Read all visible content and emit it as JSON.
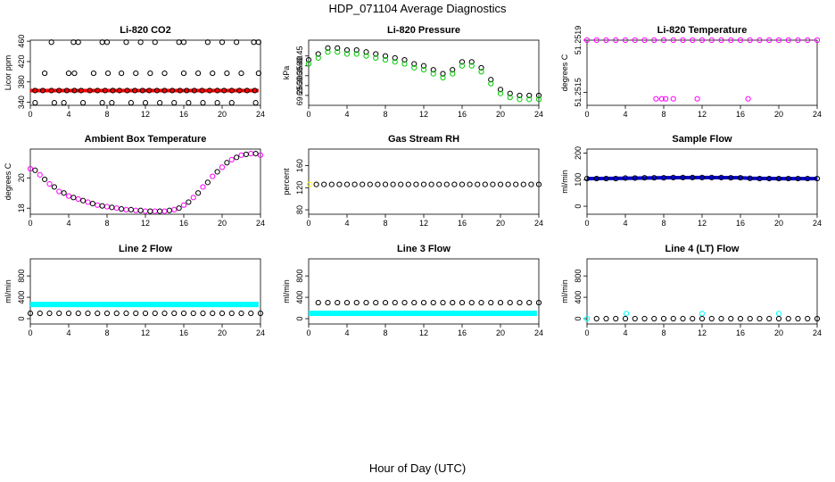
{
  "title": "HDP_071104  Average Diagnostics",
  "xlabel": "Hour of Day (UTC)",
  "chart_data": [
    {
      "id": "co2",
      "type": "scatter",
      "title": "Li-820 CO2",
      "ylabel": "Licor ppm",
      "xlim": [
        0,
        24
      ],
      "ylim": [
        334,
        462
      ],
      "xticks": [
        "0",
        "4",
        "8",
        "12",
        "16",
        "20",
        "24"
      ],
      "yticks": [
        "340",
        "380",
        "420",
        "460"
      ],
      "colors": {
        "line": "#ff0000",
        "point": "#000000"
      },
      "series": [
        {
          "style": "line",
          "color": "#ff0000",
          "x": [
            0,
            23.8
          ],
          "y": [
            363,
            363
          ]
        },
        {
          "style": "points",
          "color": "#000000",
          "x": [
            0.5,
            1.3,
            2.2,
            3.0,
            3.8,
            4.6,
            5.3,
            6.2,
            7.0,
            7.8,
            8.6,
            9.3,
            10.1,
            10.9,
            11.7,
            12.4,
            13.2,
            14.0,
            14.8,
            15.6,
            16.3,
            17.1,
            17.9,
            18.7,
            19.5,
            20.2,
            21.0,
            21.8,
            22.6,
            23.4,
            2.2,
            4.5,
            5.0,
            7.5,
            8.0,
            10.0,
            11.5,
            13.0,
            15.5,
            16.0,
            18.5,
            20.0,
            21.5,
            23.3,
            23.8,
            1.5,
            4.0,
            4.6,
            6.6,
            8.1,
            9.5,
            11.0,
            12.5,
            14.0,
            16.0,
            17.5,
            19.0,
            20.5,
            22.0,
            23.8,
            0.5,
            2.5,
            3.5,
            5.5,
            7.5,
            8.5,
            10.5,
            12.0,
            13.5,
            15.0,
            16.5,
            18.0,
            19.5,
            21.0,
            23.5
          ],
          "y": [
            363,
            363,
            363,
            363,
            363,
            363,
            363,
            363,
            363,
            363,
            363,
            363,
            363,
            363,
            363,
            363,
            363,
            363,
            363,
            363,
            363,
            363,
            363,
            363,
            363,
            363,
            363,
            363,
            363,
            363,
            458,
            458,
            458,
            458,
            458,
            458,
            458,
            458,
            458,
            458,
            458,
            458,
            458,
            458,
            458,
            397,
            397,
            397,
            397,
            397,
            397,
            397,
            397,
            397,
            397,
            397,
            397,
            397,
            397,
            397,
            339,
            339,
            339,
            339,
            339,
            339,
            339,
            339,
            339,
            339,
            339,
            339,
            339,
            339,
            339
          ]
        }
      ]
    },
    {
      "id": "pressure",
      "type": "scatter",
      "title": "Li-820 Pressure",
      "ylabel": "kPa",
      "xlim": [
        0,
        24
      ],
      "ylim": [
        69.2,
        69.53
      ],
      "xticks": [
        "0",
        "4",
        "8",
        "12",
        "16",
        "20",
        "24"
      ],
      "yticks": [
        "69.25",
        "69.30",
        "69.35",
        "69.40",
        "69.45"
      ],
      "colors": {
        "a": "#000000",
        "b": "#00cc00"
      },
      "series": [
        {
          "style": "points",
          "color": "#000000",
          "x": [
            0,
            1,
            2,
            3,
            4,
            5,
            6,
            7,
            8,
            9,
            10,
            11,
            12,
            13,
            14,
            15,
            16,
            17,
            18,
            19,
            20,
            21,
            22,
            23,
            24
          ],
          "y": [
            69.43,
            69.46,
            69.49,
            69.49,
            69.48,
            69.48,
            69.47,
            69.46,
            69.45,
            69.44,
            69.43,
            69.41,
            69.4,
            69.38,
            69.36,
            69.38,
            69.42,
            69.42,
            69.39,
            69.33,
            69.28,
            69.26,
            69.25,
            69.25,
            69.25
          ]
        },
        {
          "style": "points",
          "color": "#00cc00",
          "x": [
            0,
            1,
            2,
            3,
            4,
            5,
            6,
            7,
            8,
            9,
            10,
            11,
            12,
            13,
            14,
            15,
            16,
            17,
            18,
            19,
            20,
            21,
            22,
            23,
            24
          ],
          "y": [
            69.41,
            69.44,
            69.47,
            69.47,
            69.46,
            69.46,
            69.45,
            69.44,
            69.43,
            69.42,
            69.41,
            69.39,
            69.38,
            69.36,
            69.34,
            69.36,
            69.4,
            69.4,
            69.37,
            69.31,
            69.26,
            69.24,
            69.23,
            69.23,
            69.23
          ]
        }
      ]
    },
    {
      "id": "temp",
      "type": "scatter",
      "title": "Li-820 Temperature",
      "ylabel": "degrees C",
      "xlim": [
        0,
        24
      ],
      "ylim": [
        51.2514,
        51.2519
      ],
      "xticks": [
        "0",
        "4",
        "8",
        "12",
        "16",
        "20",
        "24"
      ],
      "yticks": [
        "51.2515",
        "51.2519"
      ],
      "colors": {
        "a": "#ff00ff",
        "b": "#000000"
      },
      "series": [
        {
          "style": "points",
          "color": "#ff00ff",
          "x": [
            0,
            1,
            2,
            3,
            4,
            5,
            6,
            7,
            8,
            9,
            10,
            11,
            12,
            13,
            14,
            15,
            16,
            17,
            18,
            19,
            20,
            21,
            22,
            23,
            24,
            7.2,
            7.8,
            8.2,
            9.0,
            11.5,
            16.8
          ],
          "y": [
            51.2519,
            51.2519,
            51.2519,
            51.2519,
            51.2519,
            51.2519,
            51.2519,
            51.2519,
            51.2519,
            51.2519,
            51.2519,
            51.2519,
            51.2519,
            51.2519,
            51.2519,
            51.2519,
            51.2519,
            51.2519,
            51.2519,
            51.2519,
            51.2519,
            51.2519,
            51.2519,
            51.2519,
            51.2519,
            51.25145,
            51.25145,
            51.25145,
            51.25145,
            51.25145,
            51.25145
          ]
        }
      ]
    },
    {
      "id": "ambient",
      "type": "scatter",
      "title": "Ambient Box Temperature",
      "ylabel": "degrees C",
      "xlim": [
        0,
        24
      ],
      "ylim": [
        17.6,
        21.9
      ],
      "xticks": [
        "0",
        "4",
        "8",
        "12",
        "16",
        "20",
        "24"
      ],
      "yticks": [
        "18",
        "20"
      ],
      "colors": {
        "a": "#ff00ff",
        "b": "#000000"
      },
      "series": [
        {
          "style": "points",
          "color": "#ff00ff",
          "x": [
            0,
            1,
            2,
            3,
            4,
            5,
            6,
            7,
            8,
            9,
            10,
            11,
            12,
            13,
            14,
            15,
            16,
            17,
            18,
            19,
            20,
            21,
            22,
            23,
            24
          ],
          "y": [
            20.6,
            20.2,
            19.6,
            19.1,
            18.8,
            18.6,
            18.4,
            18.2,
            18.1,
            18.0,
            17.9,
            17.85,
            17.8,
            17.8,
            17.8,
            17.9,
            18.2,
            18.7,
            19.4,
            20.1,
            20.7,
            21.2,
            21.5,
            21.6,
            21.5
          ]
        },
        {
          "style": "points",
          "color": "#000000",
          "x": [
            0.5,
            1.5,
            2.5,
            3.5,
            4.5,
            5.5,
            6.5,
            7.5,
            8.5,
            9.5,
            10.5,
            11.5,
            12.5,
            13.5,
            14.5,
            15.5,
            16.5,
            17.5,
            18.5,
            19.5,
            20.5,
            21.5,
            22.5,
            23.5
          ],
          "y": [
            20.5,
            19.9,
            19.4,
            19.0,
            18.7,
            18.5,
            18.3,
            18.15,
            18.05,
            17.95,
            17.9,
            17.85,
            17.8,
            17.8,
            17.85,
            18.0,
            18.4,
            19.0,
            19.7,
            20.4,
            21.0,
            21.35,
            21.55,
            21.6
          ]
        }
      ]
    },
    {
      "id": "rh",
      "type": "scatter",
      "title": "Gas Stream RH",
      "ylabel": "percent",
      "xlim": [
        0,
        24
      ],
      "ylim": [
        72,
        190
      ],
      "xticks": [
        "0",
        "4",
        "8",
        "12",
        "16",
        "20",
        "24"
      ],
      "yticks": [
        "80",
        "120",
        "160"
      ],
      "colors": {
        "a": "#ffff00",
        "b": "#000000"
      },
      "series": [
        {
          "style": "points",
          "color": "#ffff00",
          "x": [
            0.1
          ],
          "y": [
            126
          ]
        },
        {
          "style": "points",
          "color": "#000000",
          "x": [
            0.8,
            1.6,
            2.4,
            3.2,
            4.0,
            4.8,
            5.6,
            6.4,
            7.2,
            8.0,
            8.8,
            9.6,
            10.4,
            11.2,
            12.0,
            12.8,
            13.6,
            14.4,
            15.2,
            16.0,
            16.8,
            17.6,
            18.4,
            19.2,
            20.0,
            20.8,
            21.6,
            22.4,
            23.2,
            24.0
          ],
          "y": [
            126,
            126,
            126,
            126,
            126,
            126,
            126,
            126,
            126,
            126,
            126,
            126,
            126,
            126,
            126,
            126,
            126,
            126,
            126,
            126,
            126,
            126,
            126,
            126,
            126,
            126,
            126,
            126,
            126,
            126
          ]
        }
      ]
    },
    {
      "id": "sample",
      "type": "scatter",
      "title": "Sample Flow",
      "ylabel": "ml/min",
      "xlim": [
        0,
        24
      ],
      "ylim": [
        -30,
        215
      ],
      "xticks": [
        "0",
        "4",
        "8",
        "12",
        "16",
        "20",
        "24"
      ],
      "yticks": [
        "0",
        "100",
        "200"
      ],
      "colors": {
        "a": "#0000cc",
        "b": "#000000"
      },
      "series": [
        {
          "style": "line",
          "color": "#0000cc",
          "x": [
            0,
            4,
            8,
            12,
            16,
            17,
            20,
            24
          ],
          "y": [
            104,
            105,
            107,
            108,
            107,
            105,
            104,
            104
          ]
        },
        {
          "style": "points",
          "color": "#000000",
          "x": [
            0,
            1,
            2,
            3,
            4,
            5,
            6,
            7,
            8,
            9,
            10,
            11,
            12,
            13,
            14,
            15,
            16,
            17,
            18,
            19,
            20,
            21,
            22,
            23,
            24
          ],
          "y": [
            104,
            104,
            104,
            104,
            106,
            106,
            107,
            107,
            107,
            108,
            108,
            108,
            108,
            108,
            108,
            107,
            107,
            105,
            104,
            104,
            104,
            104,
            104,
            104,
            104
          ]
        }
      ]
    },
    {
      "id": "line2",
      "type": "scatter",
      "title": "Line 2 Flow",
      "ylabel": "ml/min",
      "xlim": [
        0,
        24
      ],
      "ylim": [
        -100,
        1120
      ],
      "xticks": [
        "0",
        "4",
        "8",
        "12",
        "16",
        "20",
        "24"
      ],
      "yticks": [
        "0",
        "400",
        "800"
      ],
      "colors": {
        "a": "#00ffff",
        "b": "#000000"
      },
      "series": [
        {
          "style": "band",
          "color": "#00ffff",
          "x": [
            0,
            23.8
          ],
          "y": [
            265,
            265
          ]
        },
        {
          "style": "points",
          "color": "#000000",
          "x": [
            0,
            1,
            2,
            3,
            4,
            5,
            6,
            7,
            8,
            9,
            10,
            11,
            12,
            13,
            14,
            15,
            16,
            17,
            18,
            19,
            20,
            21,
            22,
            23,
            24
          ],
          "y": [
            100,
            100,
            100,
            100,
            100,
            100,
            100,
            100,
            100,
            100,
            100,
            100,
            100,
            100,
            100,
            100,
            100,
            100,
            100,
            100,
            100,
            100,
            100,
            100,
            100
          ]
        }
      ]
    },
    {
      "id": "line3",
      "type": "scatter",
      "title": "Line 3 Flow",
      "ylabel": "ml/min",
      "xlim": [
        0,
        24
      ],
      "ylim": [
        -100,
        1120
      ],
      "xticks": [
        "0",
        "4",
        "8",
        "12",
        "16",
        "20",
        "24"
      ],
      "yticks": [
        "0",
        "400",
        "800"
      ],
      "colors": {
        "a": "#00ffff",
        "b": "#000000"
      },
      "series": [
        {
          "style": "band",
          "color": "#00ffff",
          "x": [
            0,
            23.8
          ],
          "y": [
            100,
            100
          ]
        },
        {
          "style": "points",
          "color": "#000000",
          "x": [
            1,
            2,
            3,
            4,
            5,
            6,
            7,
            8,
            9,
            10,
            11,
            12,
            13,
            14,
            15,
            16,
            17,
            18,
            19,
            20,
            21,
            22,
            23,
            24
          ],
          "y": [
            300,
            300,
            300,
            300,
            300,
            300,
            300,
            300,
            300,
            300,
            300,
            300,
            300,
            300,
            300,
            300,
            300,
            300,
            300,
            300,
            300,
            300,
            300,
            300
          ]
        }
      ]
    },
    {
      "id": "line4",
      "type": "scatter",
      "title": "Line 4 (LT) Flow",
      "ylabel": "ml/min",
      "xlim": [
        0,
        24
      ],
      "ylim": [
        -100,
        1120
      ],
      "xticks": [
        "0",
        "4",
        "8",
        "12",
        "16",
        "20",
        "24"
      ],
      "yticks": [
        "0",
        "400",
        "800"
      ],
      "colors": {
        "a": "#00ffff",
        "b": "#000000"
      },
      "series": [
        {
          "style": "points",
          "color": "#00ffff",
          "x": [
            0,
            4.1,
            12,
            20
          ],
          "y": [
            0,
            95,
            95,
            95
          ]
        },
        {
          "style": "points",
          "color": "#000000",
          "x": [
            1,
            2,
            3,
            4,
            5,
            6,
            7,
            8,
            9,
            10,
            11,
            12,
            13,
            14,
            15,
            16,
            17,
            18,
            19,
            20,
            21,
            22,
            23,
            24
          ],
          "y": [
            0,
            0,
            0,
            0,
            0,
            0,
            0,
            0,
            0,
            0,
            0,
            0,
            0,
            0,
            0,
            0,
            0,
            0,
            0,
            0,
            0,
            0,
            0,
            0
          ]
        }
      ]
    }
  ]
}
